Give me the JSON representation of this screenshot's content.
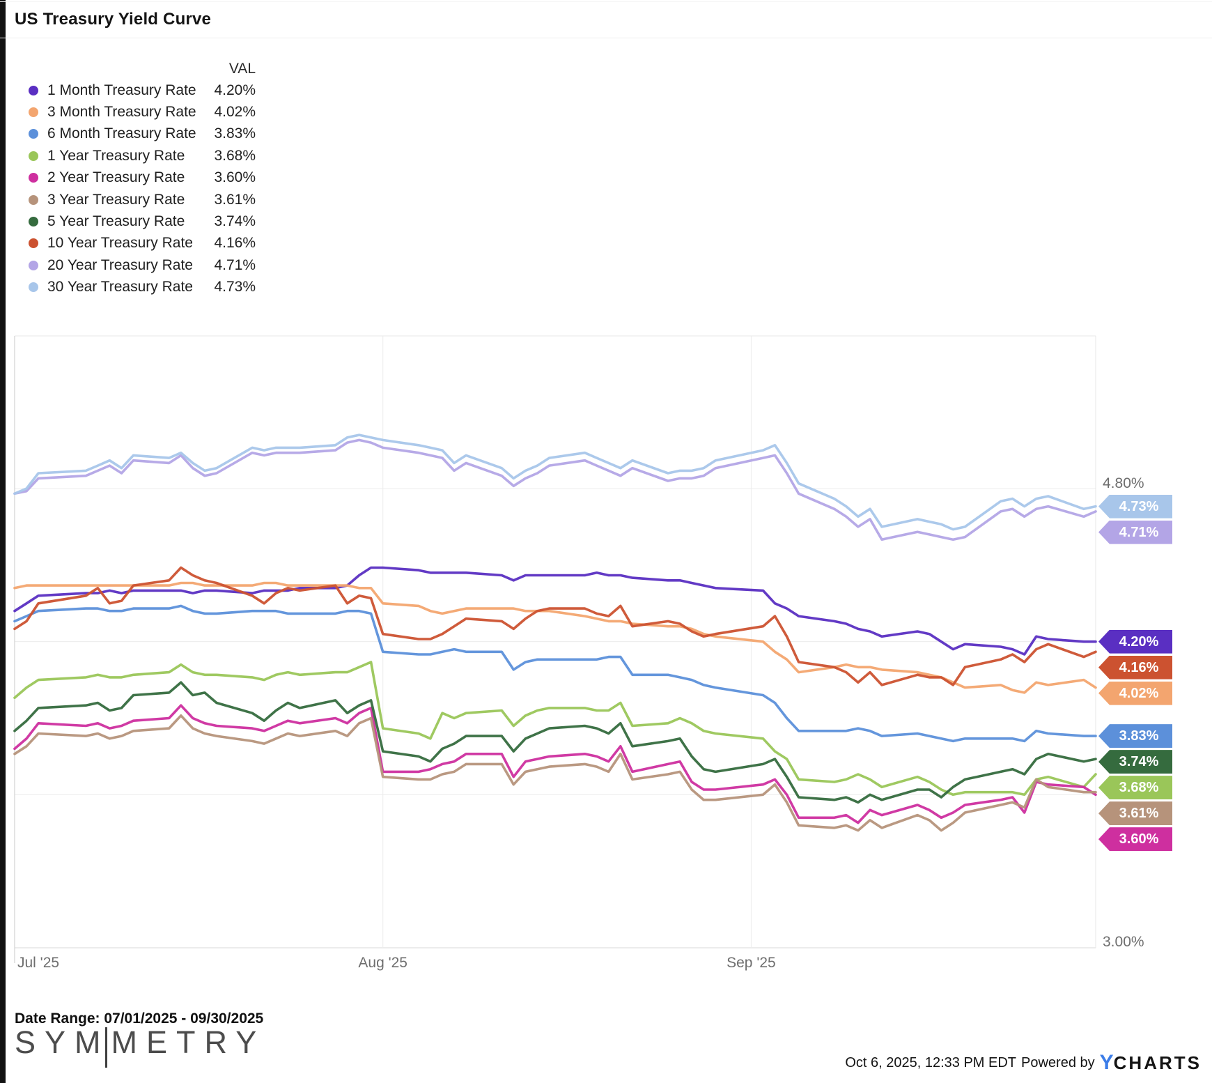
{
  "title": "US Treasury Yield Curve",
  "legend": {
    "header": "VAL",
    "items": [
      {
        "label": "1 Month Treasury Rate",
        "val": "4.20%"
      },
      {
        "label": "3 Month Treasury Rate",
        "val": "4.02%"
      },
      {
        "label": "6 Month Treasury Rate",
        "val": "3.83%"
      },
      {
        "label": "1 Year Treasury Rate",
        "val": "3.68%"
      },
      {
        "label": "2 Year Treasury Rate",
        "val": "3.60%"
      },
      {
        "label": "3 Year Treasury Rate",
        "val": "3.61%"
      },
      {
        "label": "5 Year Treasury Rate",
        "val": "3.74%"
      },
      {
        "label": "10 Year Treasury Rate",
        "val": "4.16%"
      },
      {
        "label": "20 Year Treasury Rate",
        "val": "4.71%"
      },
      {
        "label": "30 Year Treasury Rate",
        "val": "4.73%"
      }
    ]
  },
  "footer": {
    "date_range": "Date Range: 07/01/2025 - 09/30/2025",
    "logo_left": "SYM",
    "logo_right": "METRY",
    "timestamp": "Oct 6, 2025, 12:33 PM EDT",
    "powered_by": "Powered by",
    "ycharts_y": "Y",
    "ycharts_rest": "CHARTS"
  },
  "chart_data": {
    "type": "line",
    "x_axis": {
      "tick_labels": [
        "Jul '25",
        "Aug '25",
        "Sep '25"
      ],
      "tick_dates": [
        "2025-07-01",
        "2025-08-01",
        "2025-09-01"
      ],
      "range": [
        "2025-07-01",
        "2025-09-30"
      ]
    },
    "y_axis": {
      "unit": "%",
      "visible_tick_labels": [
        "4.80%",
        "3.00%"
      ],
      "gridlines": [
        4.8,
        4.2,
        3.6,
        3.0
      ],
      "ylim": [
        3.0,
        5.4
      ]
    },
    "grid": true,
    "legend_position": "top-left",
    "end_labels": [
      "4.73%",
      "4.71%",
      "4.20%",
      "4.16%",
      "4.02%",
      "3.83%",
      "3.74%",
      "3.68%",
      "3.61%",
      "3.60%"
    ],
    "dates": [
      "2025-07-01",
      "2025-07-02",
      "2025-07-03",
      "2025-07-07",
      "2025-07-08",
      "2025-07-09",
      "2025-07-10",
      "2025-07-11",
      "2025-07-14",
      "2025-07-15",
      "2025-07-16",
      "2025-07-17",
      "2025-07-18",
      "2025-07-21",
      "2025-07-22",
      "2025-07-23",
      "2025-07-24",
      "2025-07-25",
      "2025-07-28",
      "2025-07-29",
      "2025-07-30",
      "2025-07-31",
      "2025-08-01",
      "2025-08-04",
      "2025-08-05",
      "2025-08-06",
      "2025-08-07",
      "2025-08-08",
      "2025-08-11",
      "2025-08-12",
      "2025-08-13",
      "2025-08-14",
      "2025-08-15",
      "2025-08-18",
      "2025-08-19",
      "2025-08-20",
      "2025-08-21",
      "2025-08-22",
      "2025-08-25",
      "2025-08-26",
      "2025-08-27",
      "2025-08-28",
      "2025-08-29",
      "2025-09-02",
      "2025-09-03",
      "2025-09-04",
      "2025-09-05",
      "2025-09-08",
      "2025-09-09",
      "2025-09-10",
      "2025-09-11",
      "2025-09-12",
      "2025-09-15",
      "2025-09-16",
      "2025-09-17",
      "2025-09-18",
      "2025-09-19",
      "2025-09-22",
      "2025-09-23",
      "2025-09-24",
      "2025-09-25",
      "2025-09-26",
      "2025-09-29",
      "2025-09-30"
    ],
    "series": [
      {
        "name": "1 Month Treasury Rate",
        "color": "#5a2fc2",
        "end_val": 4.2,
        "values": [
          4.32,
          4.35,
          4.38,
          4.39,
          4.39,
          4.4,
          4.39,
          4.4,
          4.4,
          4.4,
          4.39,
          4.4,
          4.4,
          4.39,
          4.4,
          4.4,
          4.4,
          4.41,
          4.41,
          4.42,
          4.46,
          4.49,
          4.49,
          4.48,
          4.47,
          4.47,
          4.47,
          4.47,
          4.46,
          4.44,
          4.46,
          4.46,
          4.46,
          4.46,
          4.47,
          4.46,
          4.46,
          4.45,
          4.44,
          4.44,
          4.43,
          4.42,
          4.41,
          4.4,
          4.35,
          4.33,
          4.3,
          4.28,
          4.27,
          4.25,
          4.24,
          4.22,
          4.24,
          4.23,
          4.2,
          4.17,
          4.19,
          4.18,
          4.17,
          4.15,
          4.22,
          4.21,
          4.2,
          4.2
        ]
      },
      {
        "name": "3 Month Treasury Rate",
        "color": "#f3a56f",
        "end_val": 4.02,
        "values": [
          4.41,
          4.42,
          4.42,
          4.42,
          4.42,
          4.42,
          4.42,
          4.42,
          4.42,
          4.43,
          4.43,
          4.42,
          4.42,
          4.42,
          4.43,
          4.43,
          4.42,
          4.42,
          4.42,
          4.42,
          4.41,
          4.41,
          4.35,
          4.34,
          4.32,
          4.31,
          4.32,
          4.33,
          4.33,
          4.33,
          4.32,
          4.32,
          4.32,
          4.3,
          4.29,
          4.28,
          4.28,
          4.27,
          4.26,
          4.26,
          4.25,
          4.23,
          4.22,
          4.2,
          4.16,
          4.13,
          4.08,
          4.1,
          4.11,
          4.1,
          4.1,
          4.09,
          4.08,
          4.07,
          4.06,
          4.04,
          4.02,
          4.03,
          4.01,
          4.0,
          4.04,
          4.03,
          4.05,
          4.02
        ]
      },
      {
        "name": "6 Month Treasury Rate",
        "color": "#5c90da",
        "end_val": 3.83,
        "values": [
          4.28,
          4.3,
          4.32,
          4.33,
          4.33,
          4.32,
          4.32,
          4.33,
          4.33,
          4.34,
          4.32,
          4.31,
          4.31,
          4.32,
          4.32,
          4.32,
          4.31,
          4.31,
          4.31,
          4.32,
          4.32,
          4.31,
          4.16,
          4.15,
          4.15,
          4.16,
          4.17,
          4.16,
          4.16,
          4.09,
          4.12,
          4.13,
          4.13,
          4.13,
          4.13,
          4.14,
          4.14,
          4.07,
          4.07,
          4.06,
          4.05,
          4.03,
          4.02,
          3.99,
          3.96,
          3.9,
          3.85,
          3.85,
          3.85,
          3.86,
          3.85,
          3.83,
          3.84,
          3.83,
          3.82,
          3.81,
          3.82,
          3.82,
          3.82,
          3.81,
          3.85,
          3.84,
          3.83,
          3.83
        ]
      },
      {
        "name": "1 Year Treasury Rate",
        "color": "#9ac659",
        "end_val": 3.68,
        "values": [
          3.98,
          4.02,
          4.05,
          4.06,
          4.07,
          4.06,
          4.06,
          4.07,
          4.08,
          4.11,
          4.08,
          4.07,
          4.07,
          4.06,
          4.05,
          4.07,
          4.08,
          4.07,
          4.08,
          4.08,
          4.1,
          4.12,
          3.86,
          3.84,
          3.82,
          3.92,
          3.9,
          3.92,
          3.93,
          3.87,
          3.91,
          3.93,
          3.94,
          3.94,
          3.93,
          3.93,
          3.96,
          3.87,
          3.88,
          3.9,
          3.88,
          3.85,
          3.84,
          3.82,
          3.77,
          3.74,
          3.66,
          3.65,
          3.66,
          3.68,
          3.66,
          3.63,
          3.67,
          3.65,
          3.62,
          3.6,
          3.61,
          3.61,
          3.61,
          3.6,
          3.66,
          3.67,
          3.63,
          3.68
        ]
      },
      {
        "name": "2 Year Treasury Rate",
        "color": "#ce2f9f",
        "end_val": 3.6,
        "values": [
          3.78,
          3.82,
          3.88,
          3.87,
          3.88,
          3.86,
          3.87,
          3.89,
          3.9,
          3.95,
          3.9,
          3.88,
          3.87,
          3.86,
          3.85,
          3.87,
          3.89,
          3.88,
          3.9,
          3.88,
          3.92,
          3.94,
          3.69,
          3.69,
          3.7,
          3.72,
          3.73,
          3.76,
          3.76,
          3.67,
          3.73,
          3.74,
          3.75,
          3.76,
          3.75,
          3.73,
          3.79,
          3.69,
          3.72,
          3.73,
          3.65,
          3.62,
          3.62,
          3.64,
          3.66,
          3.6,
          3.51,
          3.51,
          3.52,
          3.49,
          3.54,
          3.52,
          3.56,
          3.54,
          3.51,
          3.53,
          3.56,
          3.58,
          3.59,
          3.53,
          3.65,
          3.64,
          3.63,
          3.6
        ]
      },
      {
        "name": "3 Year Treasury Rate",
        "color": "#b6937b",
        "end_val": 3.61,
        "values": [
          3.76,
          3.79,
          3.84,
          3.83,
          3.84,
          3.82,
          3.83,
          3.85,
          3.86,
          3.91,
          3.86,
          3.84,
          3.83,
          3.81,
          3.8,
          3.82,
          3.84,
          3.83,
          3.85,
          3.83,
          3.88,
          3.9,
          3.67,
          3.66,
          3.66,
          3.68,
          3.69,
          3.72,
          3.72,
          3.64,
          3.69,
          3.7,
          3.71,
          3.72,
          3.71,
          3.69,
          3.76,
          3.66,
          3.68,
          3.69,
          3.62,
          3.58,
          3.58,
          3.6,
          3.64,
          3.57,
          3.48,
          3.47,
          3.48,
          3.46,
          3.5,
          3.47,
          3.52,
          3.5,
          3.46,
          3.49,
          3.53,
          3.56,
          3.57,
          3.55,
          3.66,
          3.63,
          3.61,
          3.61
        ]
      },
      {
        "name": "5 Year Treasury Rate",
        "color": "#356b3e",
        "end_val": 3.74,
        "values": [
          3.85,
          3.89,
          3.94,
          3.95,
          3.96,
          3.93,
          3.94,
          3.99,
          4.0,
          4.04,
          3.99,
          4.0,
          3.96,
          3.92,
          3.89,
          3.93,
          3.96,
          3.94,
          3.97,
          3.92,
          3.95,
          3.97,
          3.77,
          3.75,
          3.73,
          3.78,
          3.8,
          3.83,
          3.83,
          3.77,
          3.82,
          3.84,
          3.86,
          3.87,
          3.86,
          3.84,
          3.88,
          3.79,
          3.81,
          3.82,
          3.75,
          3.7,
          3.69,
          3.72,
          3.74,
          3.67,
          3.59,
          3.58,
          3.59,
          3.57,
          3.6,
          3.58,
          3.62,
          3.62,
          3.59,
          3.63,
          3.66,
          3.69,
          3.7,
          3.68,
          3.74,
          3.76,
          3.73,
          3.74
        ]
      },
      {
        "name": "10 Year Treasury Rate",
        "color": "#cc5230",
        "end_val": 4.16,
        "values": [
          4.25,
          4.28,
          4.35,
          4.38,
          4.41,
          4.35,
          4.36,
          4.42,
          4.44,
          4.49,
          4.46,
          4.44,
          4.43,
          4.38,
          4.35,
          4.39,
          4.41,
          4.4,
          4.42,
          4.35,
          4.38,
          4.37,
          4.23,
          4.21,
          4.21,
          4.23,
          4.26,
          4.29,
          4.28,
          4.25,
          4.29,
          4.32,
          4.33,
          4.33,
          4.31,
          4.3,
          4.34,
          4.26,
          4.28,
          4.27,
          4.24,
          4.22,
          4.23,
          4.26,
          4.3,
          4.22,
          4.12,
          4.1,
          4.08,
          4.04,
          4.08,
          4.03,
          4.07,
          4.06,
          4.06,
          4.03,
          4.1,
          4.13,
          4.15,
          4.12,
          4.17,
          4.19,
          4.14,
          4.16
        ]
      },
      {
        "name": "20 Year Treasury Rate",
        "color": "#b3a5e6",
        "end_val": 4.71,
        "values": [
          4.78,
          4.79,
          4.84,
          4.85,
          4.87,
          4.89,
          4.86,
          4.91,
          4.9,
          4.93,
          4.88,
          4.85,
          4.86,
          4.94,
          4.93,
          4.94,
          4.94,
          4.94,
          4.95,
          4.98,
          4.99,
          4.98,
          4.96,
          4.94,
          4.93,
          4.92,
          4.87,
          4.9,
          4.85,
          4.81,
          4.84,
          4.86,
          4.89,
          4.91,
          4.89,
          4.87,
          4.85,
          4.88,
          4.83,
          4.84,
          4.84,
          4.85,
          4.88,
          4.92,
          4.93,
          4.86,
          4.78,
          4.72,
          4.69,
          4.65,
          4.68,
          4.6,
          4.63,
          4.62,
          4.61,
          4.6,
          4.61,
          4.71,
          4.72,
          4.69,
          4.72,
          4.73,
          4.69,
          4.71
        ]
      },
      {
        "name": "30 Year Treasury Rate",
        "color": "#a8c6ea",
        "end_val": 4.73,
        "values": [
          4.78,
          4.8,
          4.86,
          4.87,
          4.89,
          4.91,
          4.88,
          4.93,
          4.92,
          4.94,
          4.9,
          4.87,
          4.88,
          4.96,
          4.95,
          4.96,
          4.96,
          4.96,
          4.97,
          5.0,
          5.01,
          5.0,
          4.99,
          4.97,
          4.96,
          4.95,
          4.9,
          4.93,
          4.88,
          4.84,
          4.87,
          4.89,
          4.92,
          4.94,
          4.92,
          4.9,
          4.88,
          4.91,
          4.86,
          4.87,
          4.87,
          4.88,
          4.91,
          4.95,
          4.97,
          4.9,
          4.82,
          4.76,
          4.73,
          4.69,
          4.72,
          4.65,
          4.68,
          4.67,
          4.66,
          4.64,
          4.65,
          4.75,
          4.76,
          4.73,
          4.76,
          4.77,
          4.72,
          4.73
        ]
      }
    ]
  }
}
